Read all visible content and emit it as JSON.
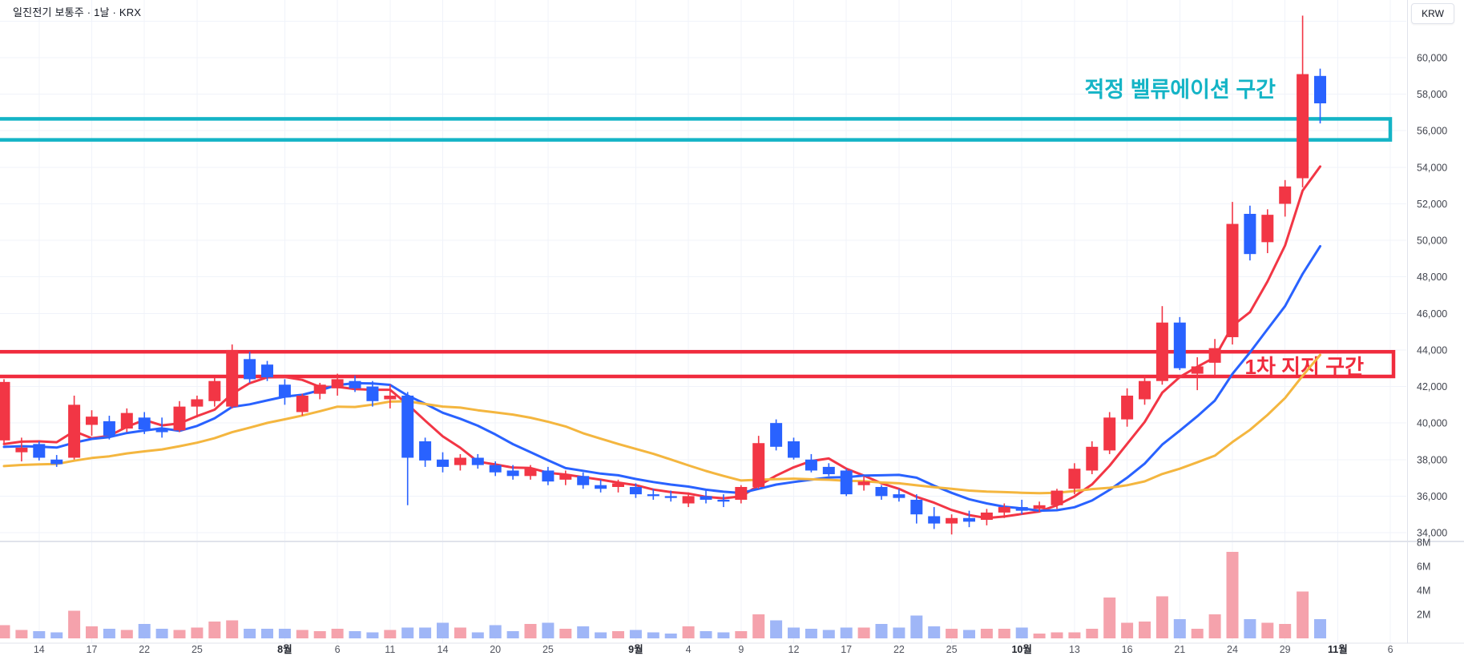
{
  "header": {
    "title": "일진전기 보통주 · 1날 · KRX",
    "currency_badge": "KRW"
  },
  "colors": {
    "up": "#f23645",
    "down": "#2962ff",
    "volume_up": "#f5a2ac",
    "volume_down": "#9fb6f7",
    "ma5": "#f23645",
    "ma10": "#2962ff",
    "ma20": "#f4b63f",
    "grid": "#f0f3fa",
    "axis_border": "#e0e3eb",
    "valuation_zone": "#14b4c6",
    "support_zone": "#f02b3d",
    "background": "#ffffff"
  },
  "chart_data": {
    "type": "candlestick",
    "title": "일진전기 보통주 · 1날 · KRX",
    "unit": "KRW",
    "legend_position": "none",
    "grid": true,
    "ylim": [
      33400,
      62800
    ],
    "volume_ylim_millions": [
      0,
      8.5
    ],
    "columns": [
      "date",
      "open",
      "high",
      "low",
      "close",
      "volume_millions"
    ],
    "candles": [
      [
        "7/10",
        39050,
        42400,
        38900,
        42250,
        1.1
      ],
      [
        "7/11",
        38400,
        39200,
        37900,
        38650,
        0.7
      ],
      [
        "7/14",
        38850,
        39000,
        37950,
        38100,
        0.6
      ],
      [
        "7/15",
        38000,
        38250,
        37600,
        37750,
        0.5
      ],
      [
        "7/16",
        38100,
        41500,
        38000,
        41000,
        2.3
      ],
      [
        "7/17",
        39900,
        40700,
        39300,
        40350,
        1.0
      ],
      [
        "7/18",
        40100,
        40400,
        39100,
        39300,
        0.8
      ],
      [
        "7/21",
        39700,
        40800,
        39500,
        40550,
        0.7
      ],
      [
        "7/22",
        40300,
        40600,
        39400,
        39650,
        1.2
      ],
      [
        "7/23",
        39700,
        40300,
        39200,
        39500,
        0.8
      ],
      [
        "7/24",
        39600,
        41200,
        39500,
        40900,
        0.7
      ],
      [
        "7/25",
        40900,
        41500,
        40300,
        41300,
        0.9
      ],
      [
        "7/28",
        41200,
        42500,
        40900,
        42300,
        1.4
      ],
      [
        "7/29",
        40900,
        44300,
        40800,
        44000,
        1.5
      ],
      [
        "7/30",
        43500,
        43900,
        42200,
        42400,
        0.8
      ],
      [
        "7/31",
        43200,
        43400,
        42300,
        42500,
        0.8
      ],
      [
        "8/1",
        42100,
        42400,
        41000,
        41400,
        0.8
      ],
      [
        "8/4",
        40600,
        41600,
        40400,
        41500,
        0.7
      ],
      [
        "8/5",
        41600,
        42200,
        41300,
        42100,
        0.6
      ],
      [
        "8/6",
        41900,
        42700,
        41500,
        42400,
        0.8
      ],
      [
        "8/7",
        42300,
        42600,
        41700,
        41900,
        0.6
      ],
      [
        "8/8",
        42000,
        42300,
        40900,
        41200,
        0.5
      ],
      [
        "8/11",
        41300,
        42100,
        40800,
        41500,
        0.7
      ],
      [
        "8/12",
        41500,
        41700,
        35500,
        38100,
        0.9
      ],
      [
        "8/13",
        39000,
        39200,
        37600,
        37950,
        0.9
      ],
      [
        "8/14",
        38000,
        38400,
        37300,
        37600,
        1.3
      ],
      [
        "8/18",
        37700,
        38300,
        37400,
        38100,
        0.9
      ],
      [
        "8/19",
        38100,
        38300,
        37500,
        37700,
        0.5
      ],
      [
        "8/20",
        37700,
        37900,
        37100,
        37300,
        1.1
      ],
      [
        "8/21",
        37400,
        37700,
        36900,
        37100,
        0.6
      ],
      [
        "8/22",
        37100,
        37700,
        36900,
        37500,
        1.2
      ],
      [
        "8/25",
        37400,
        37600,
        36600,
        36800,
        1.3
      ],
      [
        "8/26",
        36900,
        37400,
        36600,
        37200,
        0.8
      ],
      [
        "8/27",
        37100,
        37300,
        36400,
        36600,
        1.0
      ],
      [
        "8/28",
        36600,
        36900,
        36200,
        36400,
        0.5
      ],
      [
        "8/29",
        36500,
        36900,
        36200,
        36700,
        0.6
      ],
      [
        "9/1",
        36500,
        36700,
        35900,
        36100,
        0.7
      ],
      [
        "9/2",
        36100,
        36400,
        35800,
        36000,
        0.5
      ],
      [
        "9/3",
        36000,
        36300,
        35700,
        35900,
        0.4
      ],
      [
        "9/4",
        35600,
        36200,
        35400,
        36000,
        1.0
      ],
      [
        "9/5",
        36000,
        36300,
        35600,
        35800,
        0.6
      ],
      [
        "9/8",
        35800,
        36100,
        35400,
        35700,
        0.5
      ],
      [
        "9/9",
        35800,
        36600,
        35600,
        36500,
        0.6
      ],
      [
        "9/10",
        36500,
        39300,
        36400,
        38900,
        2.0
      ],
      [
        "9/11",
        40000,
        40200,
        38500,
        38700,
        1.5
      ],
      [
        "9/12",
        39000,
        39200,
        38000,
        38100,
        0.9
      ],
      [
        "9/15",
        38000,
        38300,
        37300,
        37400,
        0.8
      ],
      [
        "9/16",
        37600,
        37800,
        37100,
        37200,
        0.7
      ],
      [
        "9/17",
        37400,
        37500,
        36000,
        36100,
        0.9
      ],
      [
        "9/18",
        36600,
        37100,
        36300,
        36800,
        0.9
      ],
      [
        "9/19",
        36500,
        36600,
        35800,
        36000,
        1.2
      ],
      [
        "9/22",
        36100,
        36400,
        35700,
        35900,
        0.9
      ],
      [
        "9/23",
        35800,
        36100,
        34500,
        35000,
        1.9
      ],
      [
        "9/24",
        34900,
        35400,
        34200,
        34500,
        1.0
      ],
      [
        "9/25",
        34500,
        35000,
        33900,
        34800,
        0.8
      ],
      [
        "9/26",
        34800,
        35200,
        34300,
        34600,
        0.7
      ],
      [
        "9/29",
        34700,
        35300,
        34400,
        35100,
        0.8
      ],
      [
        "9/30",
        35100,
        35600,
        34800,
        35400,
        0.8
      ],
      [
        "10/1",
        35400,
        35800,
        35000,
        35200,
        0.9
      ],
      [
        "10/2",
        35300,
        35700,
        35100,
        35500,
        0.4
      ],
      [
        "10/10",
        35500,
        36400,
        35300,
        36300,
        0.5
      ],
      [
        "10/13",
        36400,
        37800,
        36100,
        37500,
        0.5
      ],
      [
        "10/14",
        37400,
        39000,
        37200,
        38700,
        0.8
      ],
      [
        "10/15",
        38500,
        40600,
        38300,
        40300,
        3.4
      ],
      [
        "10/16",
        40200,
        41900,
        39800,
        41500,
        1.3
      ],
      [
        "10/17",
        41300,
        42600,
        41000,
        42300,
        1.4
      ],
      [
        "10/20",
        42300,
        46400,
        42100,
        45500,
        3.5
      ],
      [
        "10/21",
        45500,
        45800,
        42900,
        43000,
        1.6
      ],
      [
        "10/22",
        42700,
        43600,
        41800,
        43100,
        0.8
      ],
      [
        "10/23",
        43300,
        44600,
        42600,
        44100,
        2.0
      ],
      [
        "10/24",
        44700,
        52100,
        44300,
        50900,
        7.2
      ],
      [
        "10/27",
        51450,
        51900,
        48900,
        49250,
        1.6
      ],
      [
        "10/28",
        49900,
        51700,
        49300,
        51400,
        1.3
      ],
      [
        "10/29",
        52000,
        53300,
        51300,
        52950,
        1.2
      ],
      [
        "10/30",
        53400,
        62300,
        52900,
        59100,
        3.9
      ],
      [
        "10/31",
        59000,
        59400,
        56400,
        57500,
        1.6
      ]
    ],
    "x_ticks": [
      {
        "i": 2,
        "label": "14"
      },
      {
        "i": 5,
        "label": "17"
      },
      {
        "i": 8,
        "label": "22"
      },
      {
        "i": 11,
        "label": "25"
      },
      {
        "i": 16,
        "label": "8월",
        "month": true
      },
      {
        "i": 19,
        "label": "6"
      },
      {
        "i": 22,
        "label": "11"
      },
      {
        "i": 25,
        "label": "14"
      },
      {
        "i": 28,
        "label": "20"
      },
      {
        "i": 31,
        "label": "25"
      },
      {
        "i": 36,
        "label": "9월",
        "month": true
      },
      {
        "i": 39,
        "label": "4"
      },
      {
        "i": 42,
        "label": "9"
      },
      {
        "i": 45,
        "label": "12"
      },
      {
        "i": 48,
        "label": "17"
      },
      {
        "i": 51,
        "label": "22"
      },
      {
        "i": 54,
        "label": "25"
      },
      {
        "i": 58,
        "label": "10월",
        "month": true
      },
      {
        "i": 61,
        "label": "13"
      },
      {
        "i": 64,
        "label": "16"
      },
      {
        "i": 67,
        "label": "21"
      },
      {
        "i": 70,
        "label": "24"
      },
      {
        "i": 73,
        "label": "29"
      },
      {
        "i": 76,
        "label": "11월",
        "month": true
      },
      {
        "i": 79,
        "label": "6"
      }
    ],
    "price_axis_labels": [
      {
        "value": 60000,
        "label": "60,000"
      },
      {
        "value": 58000,
        "label": "58,000"
      },
      {
        "value": 56000,
        "label": "56,000"
      },
      {
        "value": 54000,
        "label": "54,000"
      },
      {
        "value": 52000,
        "label": "52,000"
      },
      {
        "value": 50000,
        "label": "50,000"
      },
      {
        "value": 48000,
        "label": "48,000"
      },
      {
        "value": 46000,
        "label": "46,000"
      },
      {
        "value": 44000,
        "label": "44,000"
      },
      {
        "value": 42000,
        "label": "42,000"
      },
      {
        "value": 40000,
        "label": "40,000"
      },
      {
        "value": 38000,
        "label": "38,000"
      },
      {
        "value": 36000,
        "label": "36,000"
      },
      {
        "value": 34000,
        "label": "34,000"
      }
    ],
    "price_gridlines": [
      62000,
      60000,
      58000,
      56000,
      54000,
      52000,
      50000,
      48000,
      46000,
      44000,
      42000,
      40000,
      38000,
      36000,
      34000
    ],
    "volume_axis_labels": [
      {
        "value": 8,
        "label": "8M"
      },
      {
        "value": 6,
        "label": "6M"
      },
      {
        "value": 4,
        "label": "4M"
      },
      {
        "value": 2,
        "label": "2M"
      }
    ],
    "ma_lines": [
      {
        "name": "MA5",
        "window": 5,
        "color_key": "ma5",
        "pad": 38000
      },
      {
        "name": "MA10",
        "window": 10,
        "color_key": "ma10",
        "pad": 38300
      },
      {
        "name": "MA20",
        "window": 20,
        "color_key": "ma20",
        "pad": 37400
      }
    ],
    "annotations": [
      {
        "id": "valuation",
        "label": "적정 벨류에이션 구간",
        "price_top": 56650,
        "price_bottom": 55500,
        "color_key": "valuation_zone"
      },
      {
        "id": "support",
        "label": "1차 지지 구간",
        "price_top": 43900,
        "price_bottom": 42550,
        "color_key": "support_zone"
      }
    ]
  }
}
